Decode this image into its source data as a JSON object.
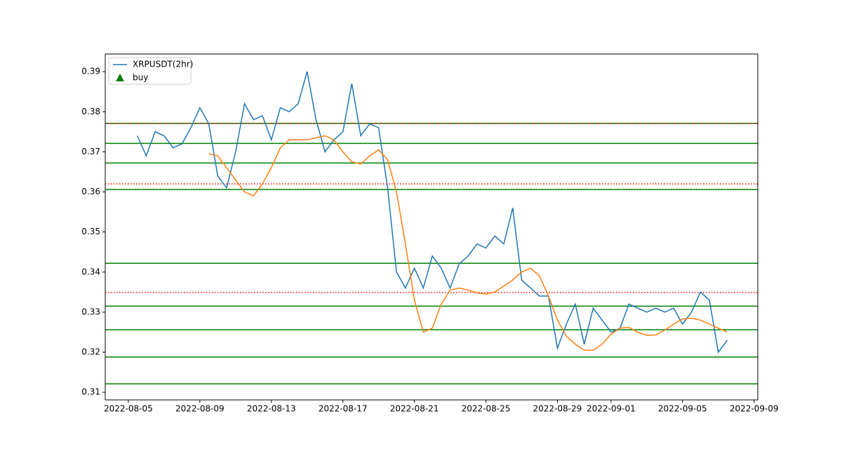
{
  "chart_data": {
    "type": "line",
    "x": [
      "2022-08-05T12:00",
      "2022-08-06T00:00",
      "2022-08-06T12:00",
      "2022-08-07T00:00",
      "2022-08-07T12:00",
      "2022-08-08T00:00",
      "2022-08-08T12:00",
      "2022-08-09T00:00",
      "2022-08-09T12:00",
      "2022-08-10T00:00",
      "2022-08-10T12:00",
      "2022-08-11T00:00",
      "2022-08-11T12:00",
      "2022-08-12T00:00",
      "2022-08-12T12:00",
      "2022-08-13T00:00",
      "2022-08-13T12:00",
      "2022-08-14T00:00",
      "2022-08-14T12:00",
      "2022-08-15T00:00",
      "2022-08-15T12:00",
      "2022-08-16T00:00",
      "2022-08-16T12:00",
      "2022-08-17T00:00",
      "2022-08-17T12:00",
      "2022-08-18T00:00",
      "2022-08-18T12:00",
      "2022-08-19T00:00",
      "2022-08-19T12:00",
      "2022-08-20T00:00",
      "2022-08-20T12:00",
      "2022-08-21T00:00",
      "2022-08-21T12:00",
      "2022-08-22T00:00",
      "2022-08-22T12:00",
      "2022-08-23T00:00",
      "2022-08-23T12:00",
      "2022-08-24T00:00",
      "2022-08-24T12:00",
      "2022-08-25T00:00",
      "2022-08-25T12:00",
      "2022-08-26T00:00",
      "2022-08-26T12:00",
      "2022-08-27T00:00",
      "2022-08-27T12:00",
      "2022-08-28T00:00",
      "2022-08-28T12:00",
      "2022-08-29T00:00",
      "2022-08-29T12:00",
      "2022-08-30T00:00",
      "2022-08-30T12:00",
      "2022-08-31T00:00",
      "2022-08-31T12:00",
      "2022-09-01T00:00",
      "2022-09-01T12:00",
      "2022-09-02T00:00",
      "2022-09-02T12:00",
      "2022-09-03T00:00",
      "2022-09-03T12:00",
      "2022-09-04T00:00",
      "2022-09-04T12:00",
      "2022-09-05T00:00",
      "2022-09-05T12:00",
      "2022-09-06T00:00",
      "2022-09-06T12:00",
      "2022-09-07T00:00",
      "2022-09-07T12:00"
    ],
    "series": [
      {
        "name": "XRPUSDT(2hr)",
        "color": "#1f77b4",
        "values": [
          0.374,
          0.369,
          0.375,
          0.374,
          0.371,
          0.372,
          0.376,
          0.381,
          0.377,
          0.364,
          0.361,
          0.37,
          0.382,
          0.378,
          0.379,
          0.373,
          0.381,
          0.38,
          0.382,
          0.39,
          0.378,
          0.37,
          0.373,
          0.375,
          0.387,
          0.374,
          0.377,
          0.376,
          0.361,
          0.34,
          0.336,
          0.341,
          0.336,
          0.344,
          0.341,
          0.336,
          0.342,
          0.344,
          0.347,
          0.346,
          0.349,
          0.347,
          0.356,
          0.338,
          0.336,
          0.334,
          0.334,
          0.321,
          0.327,
          0.332,
          0.322,
          0.331,
          0.328,
          0.325,
          0.326,
          0.332,
          0.331,
          0.33,
          0.331,
          0.33,
          0.331,
          0.327,
          0.33,
          0.335,
          0.333,
          0.32,
          0.323
        ]
      },
      {
        "color": "#ff7f0e",
        "values": [
          null,
          null,
          null,
          null,
          null,
          null,
          null,
          null,
          0.3695,
          0.369,
          0.366,
          0.363,
          0.36,
          0.359,
          0.362,
          0.366,
          0.371,
          0.373,
          0.373,
          0.373,
          0.3735,
          0.374,
          0.373,
          0.37,
          0.3675,
          0.367,
          0.369,
          0.3705,
          0.368,
          0.36,
          0.347,
          0.333,
          0.325,
          0.326,
          0.332,
          0.3355,
          0.336,
          0.3355,
          0.3348,
          0.3345,
          0.335,
          0.3365,
          0.338,
          0.34,
          0.341,
          0.339,
          0.334,
          0.328,
          0.324,
          0.322,
          0.3205,
          0.3205,
          0.322,
          0.3245,
          0.326,
          0.3262,
          0.325,
          0.3242,
          0.3243,
          0.3255,
          0.327,
          0.3283,
          0.3285,
          0.328,
          0.327,
          0.326,
          0.325
        ]
      }
    ],
    "markers": {
      "name": "buy",
      "color": "#008000",
      "marker": "triangle"
    },
    "hlines": [
      {
        "color": "#008000",
        "style": "solid",
        "values": [
          0.3771,
          0.3721,
          0.3672,
          0.3606,
          0.3422,
          0.3315,
          0.3256,
          0.3188,
          0.3121
        ]
      },
      {
        "color": "#ff0000",
        "style": "dotted",
        "values": [
          0.3771,
          0.362,
          0.3349
        ]
      }
    ],
    "xlim": [
      "2022-08-03T17:00",
      "2022-09-09T05:00"
    ],
    "xticks": [
      "2022-08-05",
      "2022-08-09",
      "2022-08-13",
      "2022-08-17",
      "2022-08-21",
      "2022-08-25",
      "2022-08-29",
      "2022-09-01",
      "2022-09-05",
      "2022-09-09"
    ],
    "ylim": [
      0.3081,
      0.3944
    ],
    "yticks": [
      0.31,
      0.32,
      0.33,
      0.34,
      0.35,
      0.36,
      0.37,
      0.38,
      0.39
    ],
    "legend": "upper left",
    "grid": false
  }
}
